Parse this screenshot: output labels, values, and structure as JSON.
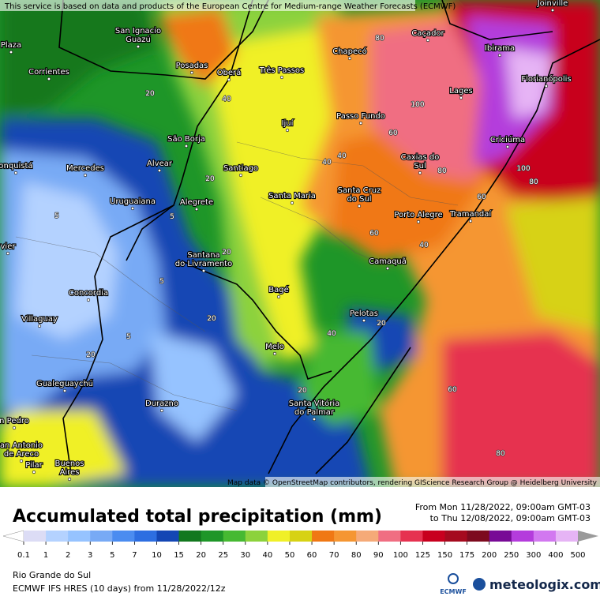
{
  "attribution_top": "This service is based on data and products of the European Centre for Medium-range Weather Forecasts (ECMWF)",
  "attribution_bottom": "Map data © OpenStreetMap contributors, rendering GIScience Research Group @ Heidelberg University",
  "cities": [
    {
      "label": [
        "Joinville"
      ]
    },
    {
      "label": [
        "Plaza"
      ]
    },
    {
      "label": [
        "San Ignacio",
        "Guazú"
      ]
    },
    {
      "label": [
        "Posadas"
      ]
    },
    {
      "label": [
        "Oberá"
      ]
    },
    {
      "label": [
        "Três Passos"
      ]
    },
    {
      "label": [
        "Chapecó"
      ]
    },
    {
      "label": [
        "Caçador"
      ]
    },
    {
      "label": [
        "Ibirama"
      ]
    },
    {
      "label": [
        "Florianópolis"
      ]
    },
    {
      "label": [
        "Lages"
      ]
    },
    {
      "label": [
        "Corrientes"
      ]
    },
    {
      "label": [
        "Ijuí"
      ]
    },
    {
      "label": [
        "Passo Fundo"
      ]
    },
    {
      "label": [
        "Criciúma"
      ]
    },
    {
      "label": [
        "São Borja"
      ]
    },
    {
      "label": [
        "Alvear"
      ]
    },
    {
      "label": [
        "Santiago"
      ]
    },
    {
      "label": [
        "Caxias do",
        "Sul"
      ]
    },
    {
      "label": [
        "Mercedes"
      ]
    },
    {
      "label": [
        "onquistá"
      ]
    },
    {
      "label": [
        "Santa Maria"
      ]
    },
    {
      "label": [
        "Santa Cruz",
        "do Sul"
      ]
    },
    {
      "label": [
        "Uruguaiana"
      ]
    },
    {
      "label": [
        "Alegrete"
      ]
    },
    {
      "label": [
        "Porto Alegre"
      ]
    },
    {
      "label": [
        "Tramandaí"
      ]
    },
    {
      "label": [
        "vier"
      ]
    },
    {
      "label": [
        "Santana",
        "do Livramento"
      ]
    },
    {
      "label": [
        "Camaquã"
      ]
    },
    {
      "label": [
        "Concordia"
      ]
    },
    {
      "label": [
        "Bagé"
      ]
    },
    {
      "label": [
        "Villaguay"
      ]
    },
    {
      "label": [
        "Pelotas"
      ]
    },
    {
      "label": [
        "Melo"
      ]
    },
    {
      "label": [
        "Gualeguaychú"
      ]
    },
    {
      "label": [
        "Santa Vitória",
        "do Palmar"
      ]
    },
    {
      "label": [
        "Durazno"
      ]
    },
    {
      "label": [
        "n Pedro"
      ]
    },
    {
      "label": [
        "an Antonio",
        "de Areco"
      ]
    },
    {
      "label": [
        "Pilar"
      ]
    },
    {
      "label": [
        "Buenos",
        "Aires"
      ]
    }
  ],
  "contour_labels": [
    5,
    5,
    5,
    5,
    20,
    20,
    20,
    20,
    20,
    20,
    20,
    40,
    40,
    40,
    40,
    40,
    60,
    60,
    60,
    60,
    80,
    80,
    80,
    80,
    100,
    100
  ],
  "legend": {
    "title": "Accumulated total precipitation (mm)",
    "period_from": "From Mon 11/28/2022, 09:00am GMT-03",
    "period_to": "to Thu 12/08/2022, 09:00am GMT-03",
    "ticks": [
      0.1,
      1,
      2,
      3,
      5,
      7,
      10,
      15,
      20,
      25,
      30,
      40,
      50,
      60,
      70,
      80,
      90,
      100,
      125,
      150,
      175,
      200,
      250,
      300,
      400,
      500
    ],
    "colors": [
      "#ffffff",
      "#dcdcf5",
      "#b4d2ff",
      "#96c3ff",
      "#78aaf5",
      "#4b8cf0",
      "#2d6ee1",
      "#1446b4",
      "#12781e",
      "#1e9628",
      "#46b932",
      "#8cd23c",
      "#f0f028",
      "#d7d214",
      "#f07814",
      "#f59632",
      "#f5aa78",
      "#f06e82",
      "#e63250",
      "#c8001e",
      "#a50a1e",
      "#7d0a1e",
      "#780a96",
      "#b43cdc",
      "#d278f0",
      "#e6b4f5",
      "#f5e6fa",
      "#dcdcdc",
      "#9a9a9a"
    ]
  },
  "region": "Rio Grande do Sul",
  "model_run": "ECMWF IFS HRES (10 days) from 11/28/2022/12z",
  "logo_ecmwf": "ECMWF",
  "logo_meteologix": "meteologix.com"
}
